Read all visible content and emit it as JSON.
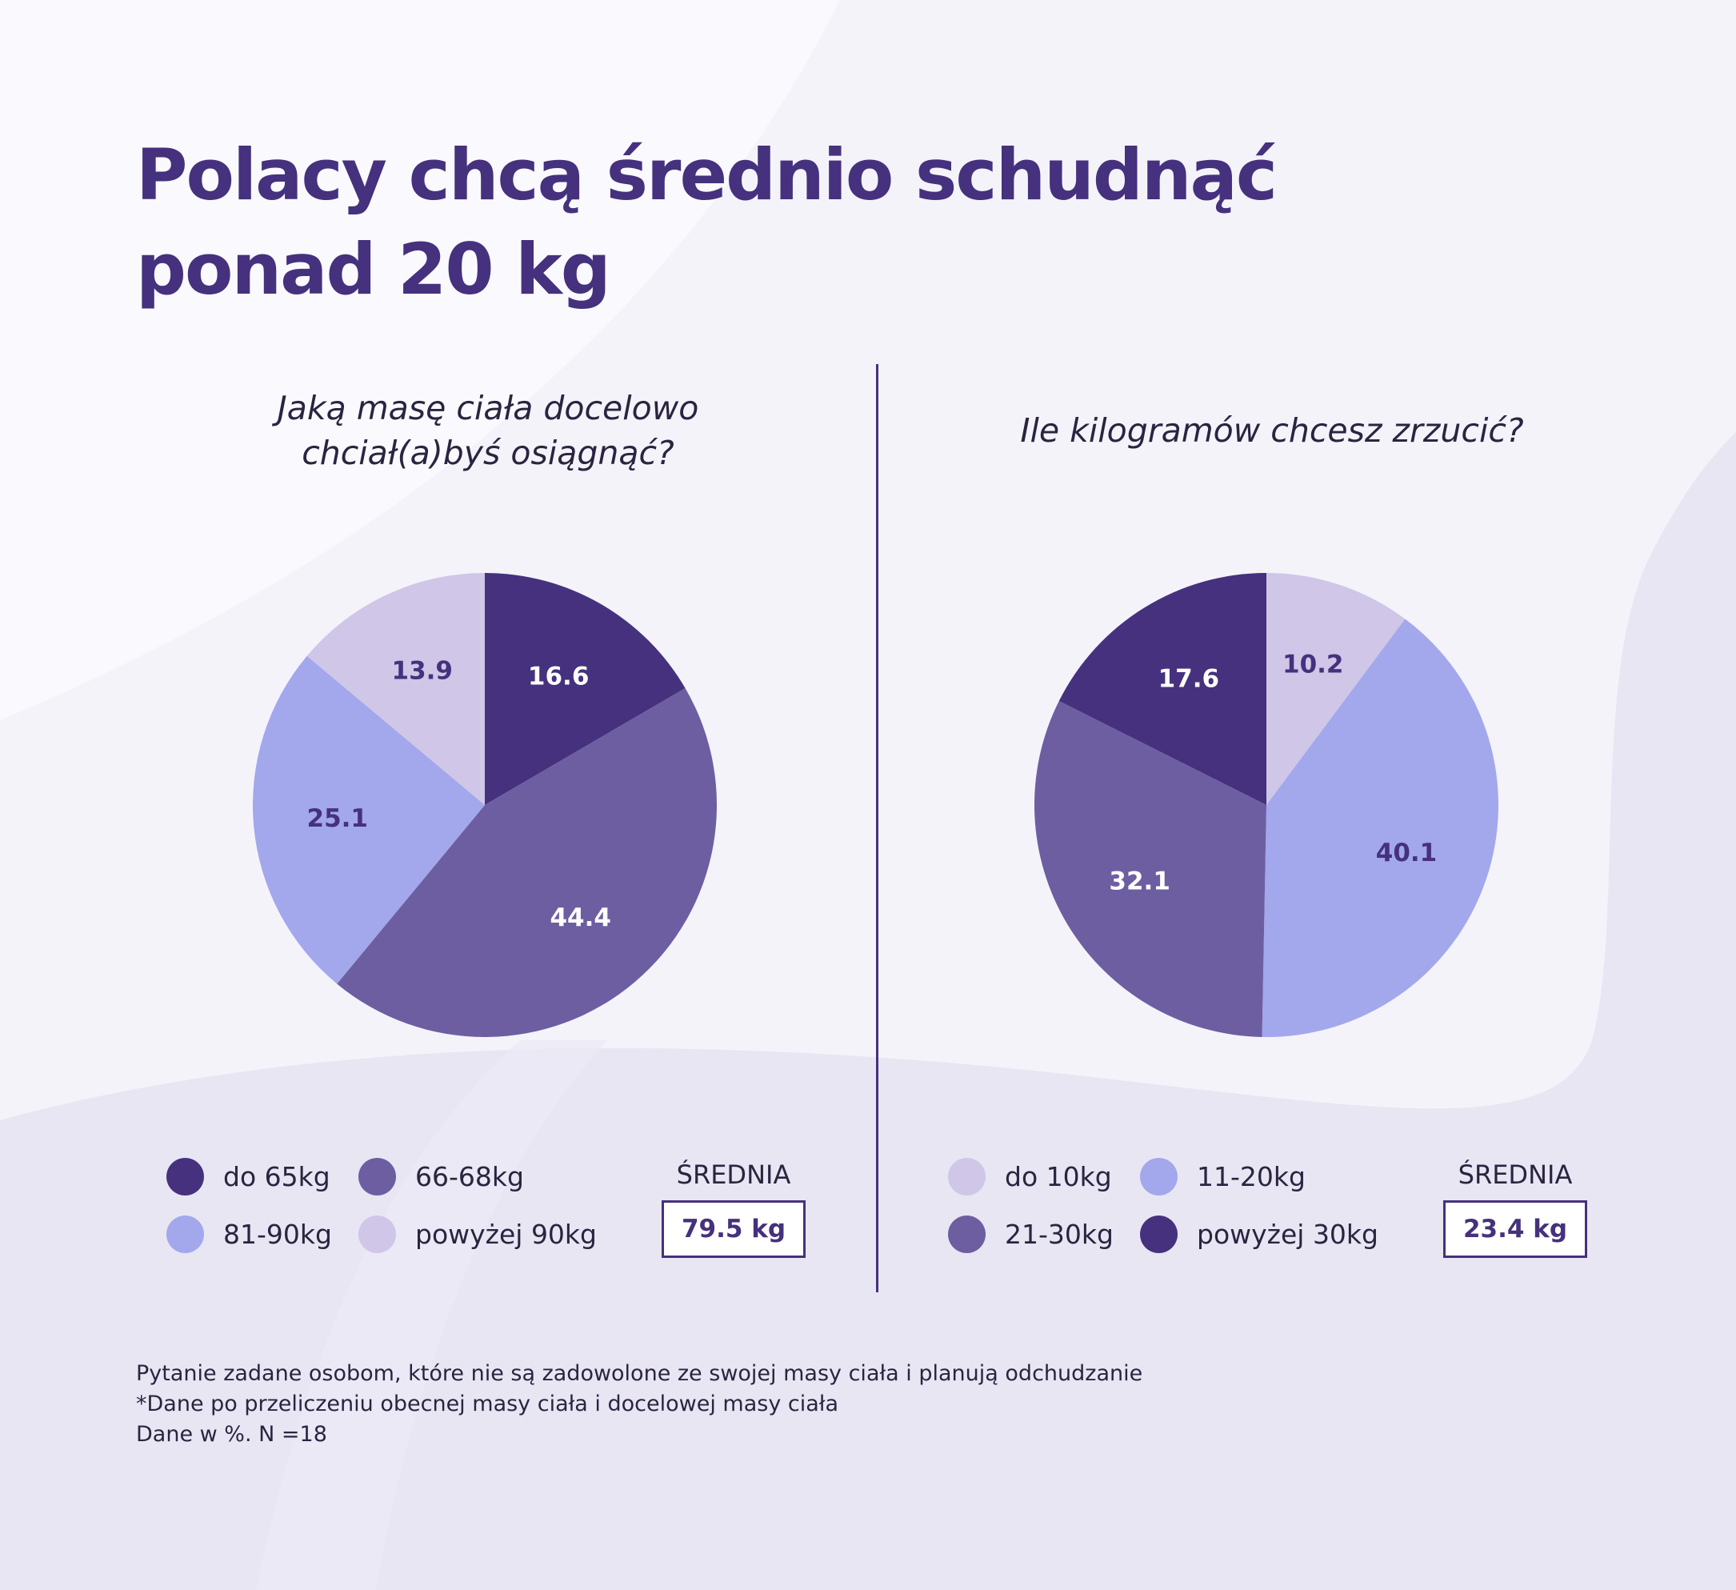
{
  "title_line1": "Polacy chcą średnio schudnąć",
  "title_line2": "ponad 20 kg",
  "colors": {
    "darkest": "#45317d",
    "dark": "#6d5ea2",
    "light": "#a3a7ec",
    "lightest": "#cfc6e8"
  },
  "chart_data": [
    {
      "type": "pie",
      "title_line1": "Jaką masę ciała docelowo",
      "title_line2": "chciał(a)byś osiągnąć?",
      "categories": [
        "do 65kg",
        "66-68kg",
        "81-90kg",
        "powyżej 90kg"
      ],
      "slice_order": [
        "do 65kg",
        "66-68kg",
        "81-90kg",
        "powyżej 90kg"
      ],
      "values": [
        16.6,
        44.4,
        25.1,
        13.9
      ],
      "slice_colors": [
        "#45317d",
        "#6d5ea2",
        "#a3a7ec",
        "#cfc6e8"
      ],
      "label_colors": [
        "#ffffff",
        "#ffffff",
        "#45317d",
        "#45317d"
      ],
      "average_label": "ŚREDNIA",
      "average_value": "79.5 kg"
    },
    {
      "type": "pie",
      "title": "Ile kilogramów chcesz zrzucić?",
      "categories": [
        "do 10kg",
        "11-20kg",
        "21-30kg",
        "powyżej 30kg"
      ],
      "values": [
        10.2,
        40.1,
        32.1,
        17.6
      ],
      "slice_colors": [
        "#cfc6e8",
        "#a3a7ec",
        "#6d5ea2",
        "#45317d"
      ],
      "label_colors": [
        "#45317d",
        "#45317d",
        "#ffffff",
        "#ffffff"
      ],
      "average_label": "ŚREDNIA",
      "average_value": "23.4 kg"
    }
  ],
  "legend1": [
    {
      "label": "do 65kg",
      "color": "#45317d"
    },
    {
      "label": "66-68kg",
      "color": "#6d5ea2"
    },
    {
      "label": "81-90kg",
      "color": "#a3a7ec"
    },
    {
      "label": "powyżej 90kg",
      "color": "#cfc6e8"
    }
  ],
  "legend2": [
    {
      "label": "do 10kg",
      "color": "#cfc6e8"
    },
    {
      "label": "11-20kg",
      "color": "#a3a7ec"
    },
    {
      "label": "21-30kg",
      "color": "#6d5ea2"
    },
    {
      "label": "powyżej 30kg",
      "color": "#45317d"
    }
  ],
  "notes": [
    "Pytanie zadane osobom, które nie są zadowolone ze swojej masy ciała i planują odchudzanie",
    "*Dane po przeliczeniu obecnej masy ciała i docelowej masy ciała",
    "Dane w %. N =18"
  ]
}
